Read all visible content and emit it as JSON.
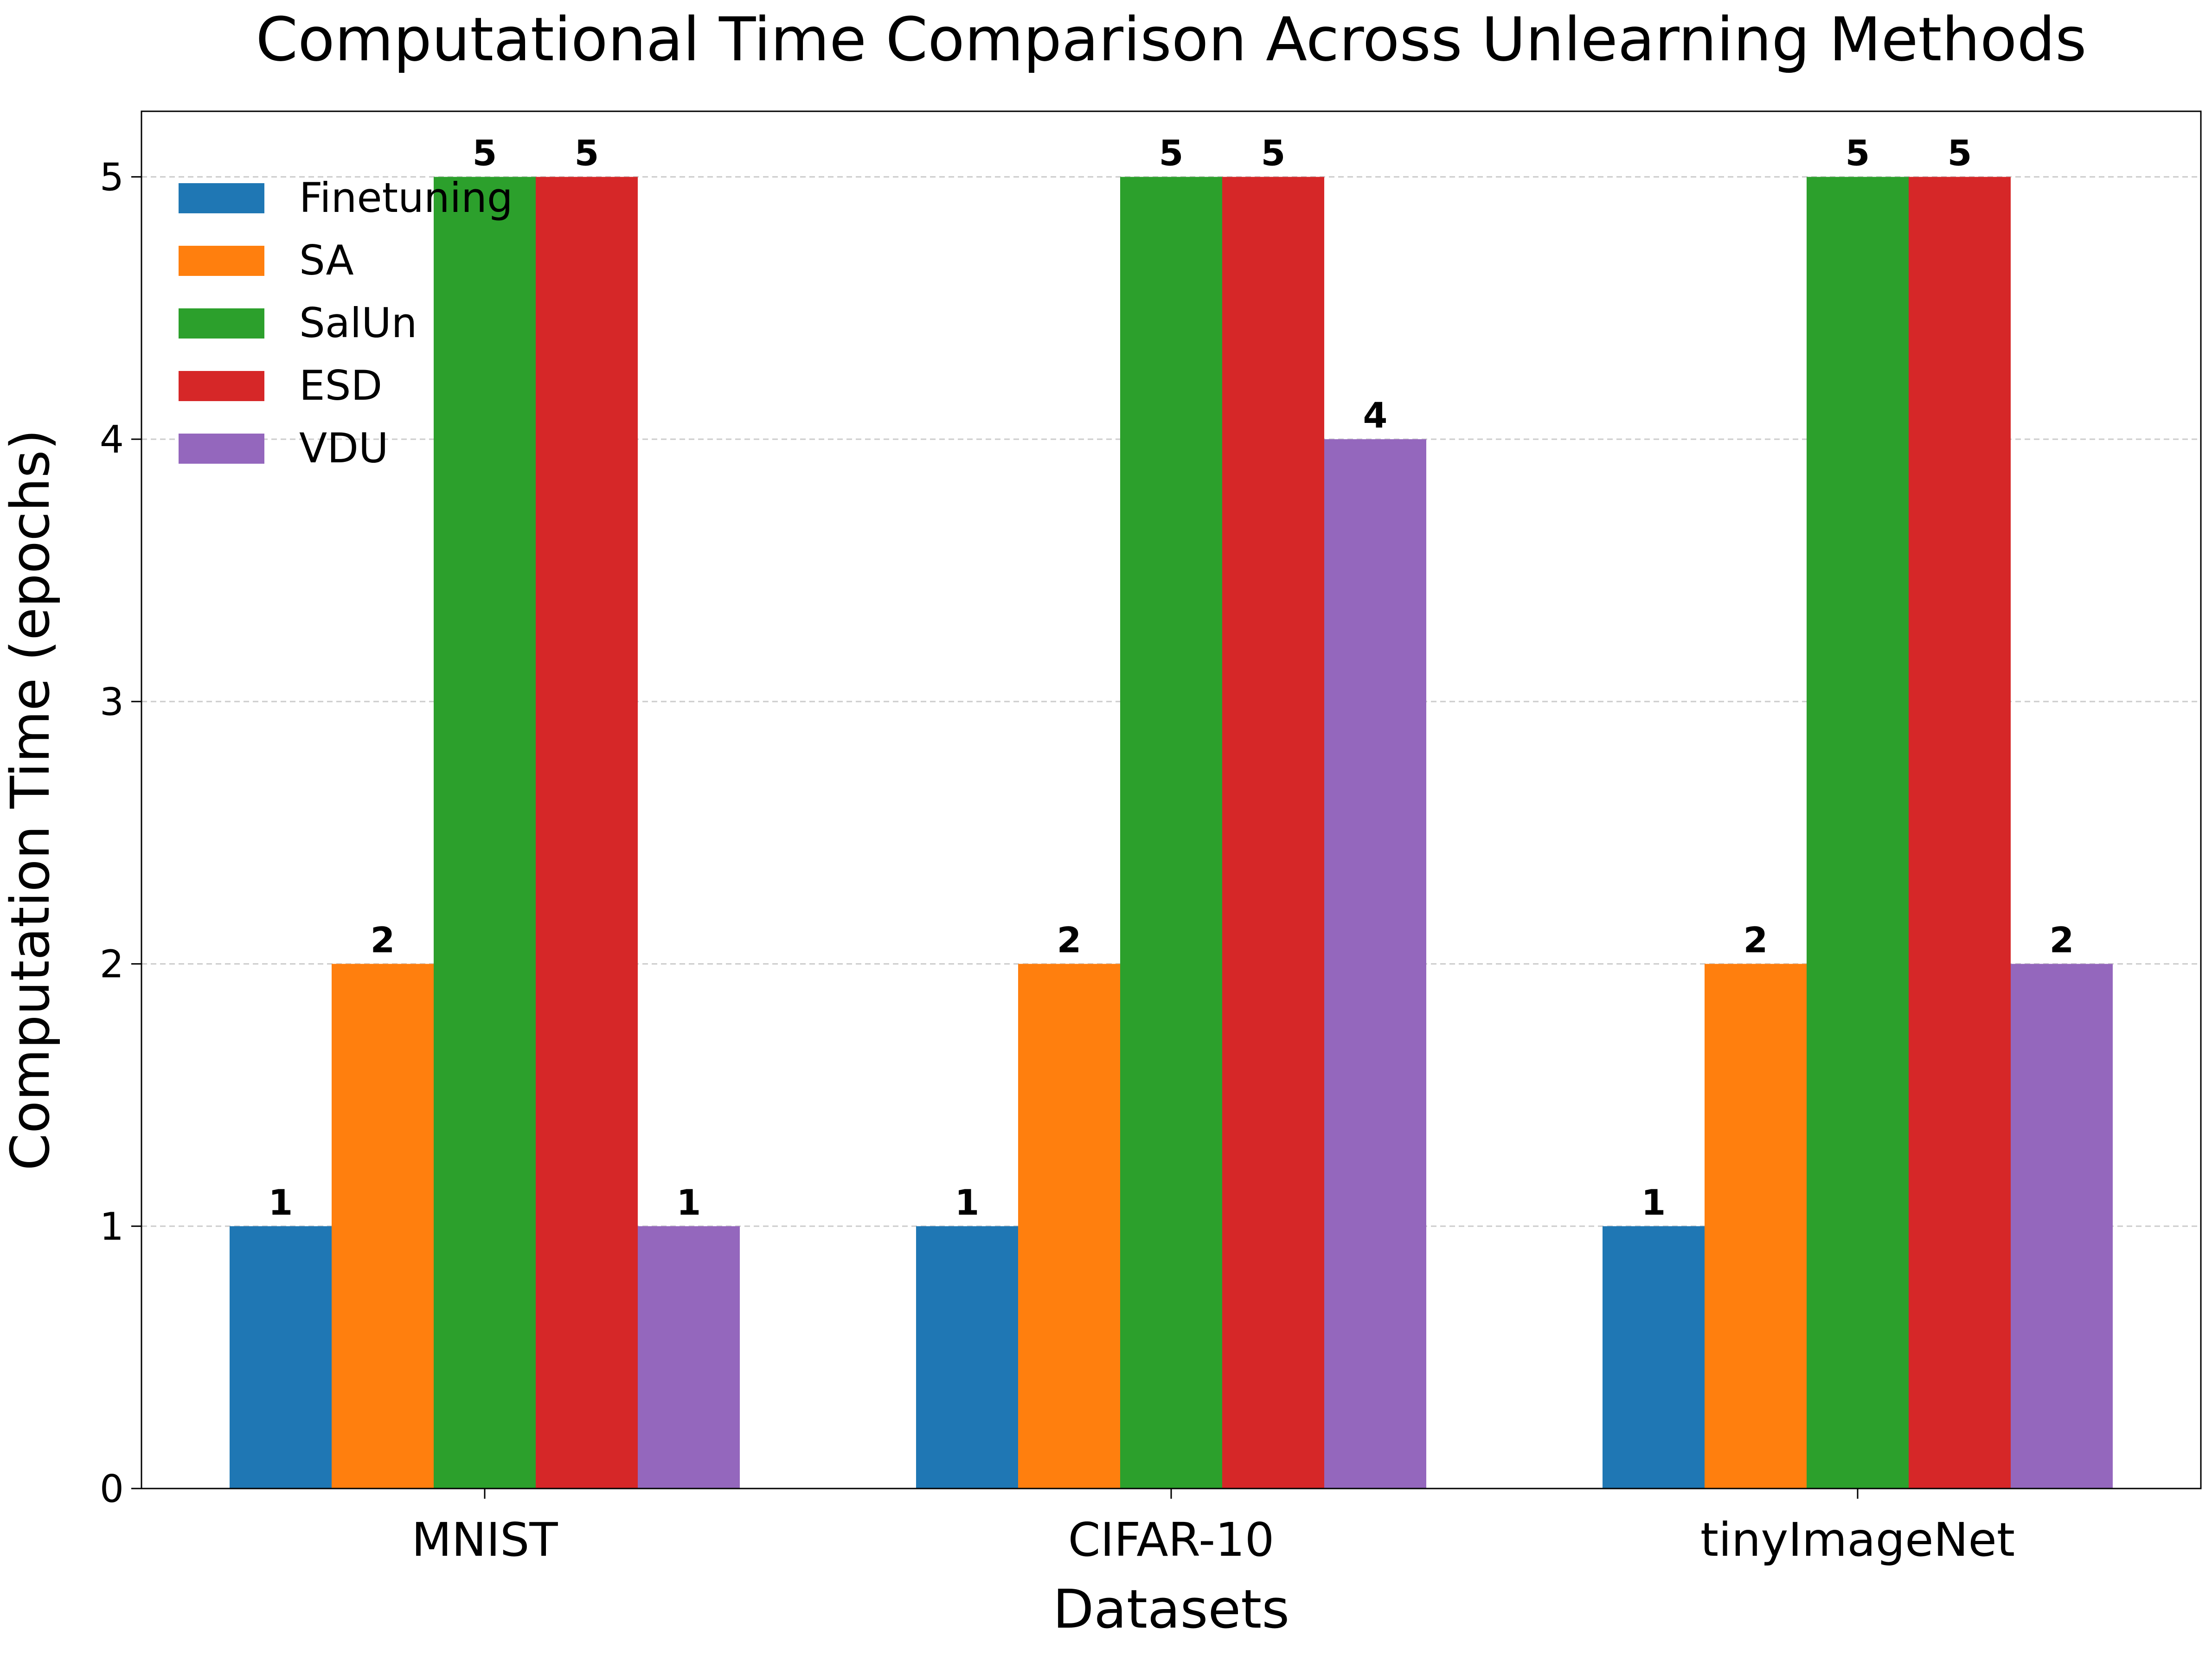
{
  "chart_data": {
    "type": "bar",
    "title": "Computational Time Comparison Across Unlearning Methods",
    "xlabel": "Datasets",
    "ylabel": "Computation Time (epochs)",
    "categories": [
      "MNIST",
      "CIFAR-10",
      "tinyImageNet"
    ],
    "series": [
      {
        "name": "Finetuning",
        "color": "#1f77b4",
        "values": [
          1,
          1,
          1
        ]
      },
      {
        "name": "SA",
        "color": "#ff7f0e",
        "values": [
          2,
          2,
          2
        ]
      },
      {
        "name": "SalUn",
        "color": "#2ca02c",
        "values": [
          5,
          5,
          5
        ]
      },
      {
        "name": "ESD",
        "color": "#d62728",
        "values": [
          5,
          5,
          5
        ]
      },
      {
        "name": "VDU",
        "color": "#9467bd",
        "values": [
          1,
          4,
          2
        ]
      }
    ],
    "ylim": [
      0,
      5.25
    ],
    "yticks": [
      0,
      1,
      2,
      3,
      4,
      5
    ],
    "grid": "horizontal dashed",
    "legend_position": "upper-left",
    "data_labels": true
  }
}
